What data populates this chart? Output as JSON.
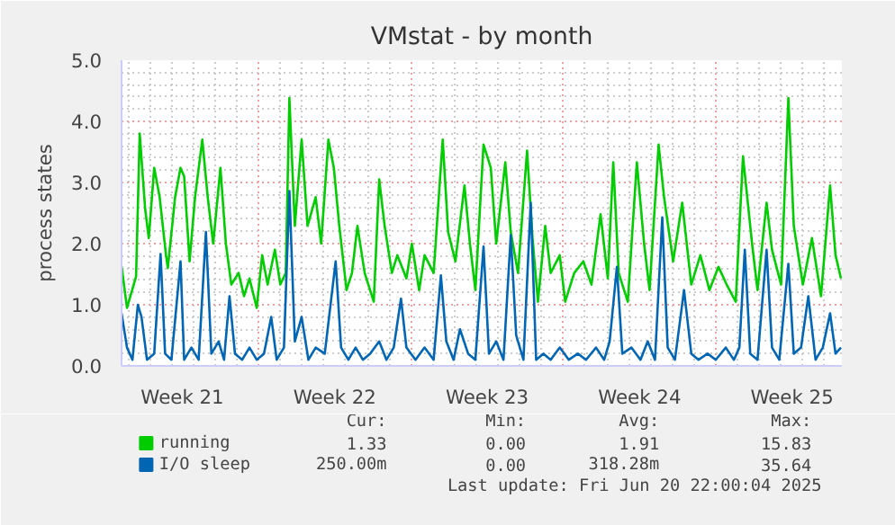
{
  "chart_data": {
    "type": "line",
    "title": "VMstat - by month",
    "ylabel": "process states",
    "xlim": [
      "2025-05-19T17:00",
      "2025-06-21T19:00"
    ],
    "ylim": [
      0,
      5
    ],
    "xticks": [
      {
        "value": "2025-05-22T12:00",
        "label": "Week 21"
      },
      {
        "value": "2025-05-26T00:00",
        "label": null
      },
      {
        "value": "2025-05-29T12:00",
        "label": "Week 22"
      },
      {
        "value": "2025-06-02T00:00",
        "label": null
      },
      {
        "value": "2025-06-05T12:00",
        "label": "Week 23"
      },
      {
        "value": "2025-06-09T00:00",
        "label": null
      },
      {
        "value": "2025-06-12T12:00",
        "label": "Week 24"
      },
      {
        "value": "2025-06-16T00:00",
        "label": null
      },
      {
        "value": "2025-06-19T12:00",
        "label": "Week 25"
      }
    ],
    "yticks": [
      {
        "value": 0,
        "label": "0.0"
      },
      {
        "value": 1,
        "label": "1.0"
      },
      {
        "value": 2,
        "label": "2.0"
      },
      {
        "value": 3,
        "label": "3.0"
      },
      {
        "value": 4,
        "label": "4.0"
      },
      {
        "value": 5,
        "label": "5.0"
      }
    ],
    "grid": true,
    "legend": "bottom",
    "series": [
      {
        "name": "running",
        "color": "#00cc00",
        "x": [
          "2025-05-19T17:00",
          "2025-05-19T23:00",
          "2025-05-20T09:00",
          "2025-05-20T13:00",
          "2025-05-20T19:00",
          "2025-05-20T23:00",
          "2025-05-21T05:00",
          "2025-05-21T11:00",
          "2025-05-21T18:00",
          "2025-05-21T20:00",
          "2025-05-22T04:00",
          "2025-05-22T10:00",
          "2025-05-22T14:00",
          "2025-05-22T20:00",
          "2025-05-23T02:00",
          "2025-05-23T10:00",
          "2025-05-23T16:00",
          "2025-05-23T22:00",
          "2025-05-24T06:00",
          "2025-05-24T12:00",
          "2025-05-24T18:00",
          "2025-05-25T02:00",
          "2025-05-25T08:00",
          "2025-05-25T14:00",
          "2025-05-25T22:00",
          "2025-05-26T04:00",
          "2025-05-26T10:00",
          "2025-05-26T18:00",
          "2025-05-27T00:00",
          "2025-05-27T06:00",
          "2025-05-27T10:00",
          "2025-05-27T16:00",
          "2025-05-27T23:30",
          "2025-05-28T06:00",
          "2025-05-28T15:00",
          "2025-05-28T21:00",
          "2025-05-29T05:00",
          "2025-05-29T11:00",
          "2025-05-29T17:00",
          "2025-05-30T01:00",
          "2025-05-30T07:00",
          "2025-05-30T13:00",
          "2025-05-30T21:00",
          "2025-05-31T07:00",
          "2025-05-31T13:00",
          "2025-05-31T19:00",
          "2025-06-01T03:00",
          "2025-06-01T09:00",
          "2025-06-01T19:00",
          "2025-06-02T01:00",
          "2025-06-02T09:00",
          "2025-06-02T15:00",
          "2025-06-03T01:00",
          "2025-06-03T11:00",
          "2025-06-03T17:00",
          "2025-06-04T01:00",
          "2025-06-04T11:00",
          "2025-06-04T17:00",
          "2025-06-04T23:00",
          "2025-06-05T08:00",
          "2025-06-05T16:00",
          "2025-06-05T22:00",
          "2025-06-06T08:00",
          "2025-06-06T14:00",
          "2025-06-06T22:00",
          "2025-06-07T08:00",
          "2025-06-07T14:00",
          "2025-06-07T20:00",
          "2025-06-08T04:00",
          "2025-06-08T10:00",
          "2025-06-08T20:00",
          "2025-06-09T02:00",
          "2025-06-09T12:00",
          "2025-06-09T22:00",
          "2025-06-10T07:00",
          "2025-06-10T17:00",
          "2025-06-11T01:00",
          "2025-06-11T07:00",
          "2025-06-11T13:00",
          "2025-06-11T23:00",
          "2025-06-12T09:00",
          "2025-06-12T17:00",
          "2025-06-12T23:00",
          "2025-06-13T09:00",
          "2025-06-13T15:00",
          "2025-06-14T01:00",
          "2025-06-14T11:00",
          "2025-06-14T21:00",
          "2025-06-15T07:00",
          "2025-06-15T17:00",
          "2025-06-16T03:00",
          "2025-06-16T12:00",
          "2025-06-16T22:00",
          "2025-06-17T06:00",
          "2025-06-17T16:00",
          "2025-06-17T22:00",
          "2025-06-18T08:00",
          "2025-06-18T14:00",
          "2025-06-19T00:00",
          "2025-06-19T08:00",
          "2025-06-19T14:00",
          "2025-06-20T00:00",
          "2025-06-20T10:00",
          "2025-06-20T20:00",
          "2025-06-21T06:00",
          "2025-06-21T12:00",
          "2025-06-21T18:00"
        ],
        "values": [
          1.63,
          0.95,
          1.46,
          3.8,
          2.57,
          2.09,
          3.24,
          2.76,
          1.81,
          1.6,
          2.76,
          3.24,
          3.1,
          1.71,
          2.76,
          3.7,
          2.76,
          2.0,
          3.24,
          2.0,
          1.33,
          1.52,
          1.14,
          1.43,
          0.95,
          1.81,
          1.33,
          1.9,
          1.33,
          1.52,
          4.38,
          2.29,
          3.7,
          2.29,
          2.76,
          2.0,
          3.7,
          3.24,
          2.29,
          1.24,
          1.52,
          2.29,
          1.52,
          1.05,
          3.05,
          2.29,
          1.52,
          1.81,
          1.43,
          2.0,
          1.24,
          1.81,
          1.52,
          3.7,
          2.19,
          1.71,
          2.95,
          2.0,
          1.24,
          3.62,
          3.24,
          2.0,
          3.33,
          2.19,
          1.52,
          3.52,
          2.09,
          1.05,
          2.29,
          1.52,
          1.81,
          1.05,
          1.52,
          1.71,
          1.33,
          2.48,
          1.43,
          3.33,
          1.52,
          1.05,
          3.33,
          2.0,
          1.24,
          3.62,
          2.76,
          1.71,
          2.67,
          1.33,
          1.81,
          1.24,
          1.62,
          1.33,
          1.05,
          3.43,
          2.0,
          1.24,
          2.67,
          1.9,
          1.33,
          4.38,
          2.29,
          1.33,
          2.09,
          1.14,
          2.95,
          1.81,
          1.43
        ]
      },
      {
        "name": "I/O sleep",
        "color": "#0066b3",
        "x": [
          "2025-05-19T17:00",
          "2025-05-19T23:00",
          "2025-05-20T05:00",
          "2025-05-20T11:00",
          "2025-05-20T15:00",
          "2025-05-20T21:00",
          "2025-05-21T05:00",
          "2025-05-21T12:00",
          "2025-05-21T17:00",
          "2025-05-22T00:00",
          "2025-05-22T10:00",
          "2025-05-22T14:00",
          "2025-05-22T22:00",
          "2025-05-23T06:00",
          "2025-05-23T14:00",
          "2025-05-23T20:00",
          "2025-05-24T04:00",
          "2025-05-24T10:00",
          "2025-05-24T16:00",
          "2025-05-24T22:00",
          "2025-05-25T06:00",
          "2025-05-25T14:00",
          "2025-05-25T22:00",
          "2025-05-26T06:00",
          "2025-05-26T14:00",
          "2025-05-26T20:00",
          "2025-05-27T04:00",
          "2025-05-27T10:00",
          "2025-05-27T16:00",
          "2025-05-27T23:30",
          "2025-05-28T07:00",
          "2025-05-28T15:00",
          "2025-05-29T01:00",
          "2025-05-29T13:00",
          "2025-05-29T19:00",
          "2025-05-30T03:00",
          "2025-05-30T11:00",
          "2025-05-30T19:00",
          "2025-05-31T03:00",
          "2025-05-31T13:00",
          "2025-05-31T21:00",
          "2025-06-01T05:00",
          "2025-06-01T13:00",
          "2025-06-01T19:00",
          "2025-06-02T05:00",
          "2025-06-02T15:00",
          "2025-06-03T01:00",
          "2025-06-03T09:00",
          "2025-06-03T15:00",
          "2025-06-03T23:00",
          "2025-06-04T06:00",
          "2025-06-04T15:00",
          "2025-06-04T23:00",
          "2025-06-05T08:00",
          "2025-06-05T14:00",
          "2025-06-05T22:00",
          "2025-06-06T06:00",
          "2025-06-06T14:00",
          "2025-06-06T20:00",
          "2025-06-07T04:00",
          "2025-06-07T12:00",
          "2025-06-07T18:00",
          "2025-06-08T02:00",
          "2025-06-08T10:00",
          "2025-06-08T20:00",
          "2025-06-09T06:00",
          "2025-06-09T16:00",
          "2025-06-10T01:00",
          "2025-06-10T12:00",
          "2025-06-10T21:00",
          "2025-06-11T03:00",
          "2025-06-11T11:00",
          "2025-06-11T17:00",
          "2025-06-12T03:00",
          "2025-06-12T13:00",
          "2025-06-12T21:00",
          "2025-06-13T05:00",
          "2025-06-13T13:00",
          "2025-06-13T19:00",
          "2025-06-14T03:00",
          "2025-06-14T13:00",
          "2025-06-14T21:00",
          "2025-06-15T05:00",
          "2025-06-15T15:00",
          "2025-06-16T00:00",
          "2025-06-16T11:00",
          "2025-06-16T20:00",
          "2025-06-17T02:00",
          "2025-06-17T08:00",
          "2025-06-17T14:00",
          "2025-06-17T22:00",
          "2025-06-18T08:00",
          "2025-06-18T14:00",
          "2025-06-18T22:00",
          "2025-06-19T08:00",
          "2025-06-19T14:00",
          "2025-06-19T22:00",
          "2025-06-20T06:00",
          "2025-06-20T14:00",
          "2025-06-20T22:00",
          "2025-06-21T06:00",
          "2025-06-21T12:00",
          "2025-06-21T18:00"
        ],
        "values": [
          0.86,
          0.3,
          0.1,
          1.0,
          0.8,
          0.1,
          0.2,
          1.83,
          0.2,
          0.1,
          1.71,
          0.1,
          0.3,
          0.1,
          2.19,
          0.2,
          0.4,
          0.1,
          1.14,
          0.2,
          0.1,
          0.3,
          0.1,
          0.2,
          0.8,
          0.1,
          0.3,
          2.86,
          0.4,
          0.8,
          0.1,
          0.3,
          0.2,
          1.71,
          0.3,
          0.1,
          0.3,
          0.1,
          0.2,
          0.4,
          0.1,
          0.3,
          1.1,
          0.3,
          0.1,
          0.3,
          0.1,
          1.48,
          0.4,
          0.1,
          0.6,
          0.2,
          0.1,
          1.95,
          0.2,
          0.4,
          0.1,
          2.14,
          0.5,
          0.1,
          2.67,
          0.1,
          0.2,
          0.1,
          0.3,
          0.1,
          0.2,
          0.1,
          0.3,
          0.1,
          0.4,
          1.62,
          0.2,
          0.3,
          0.1,
          0.4,
          0.1,
          2.43,
          0.3,
          0.1,
          1.24,
          0.2,
          0.1,
          0.2,
          0.1,
          0.3,
          0.1,
          0.3,
          1.9,
          0.2,
          0.1,
          1.9,
          0.3,
          0.1,
          1.67,
          0.2,
          0.3,
          1.14,
          0.1,
          0.3,
          0.86,
          0.2,
          0.3
        ]
      }
    ],
    "annotations": [
      "Cur:",
      "Min:",
      "Avg:",
      "Max:",
      "1.33",
      "0.00",
      "1.91",
      "15.83",
      "250.00m",
      "0.00",
      "318.28m",
      "35.64",
      "Last update: Fri Jun 20 22:00:04 2025"
    ]
  }
}
